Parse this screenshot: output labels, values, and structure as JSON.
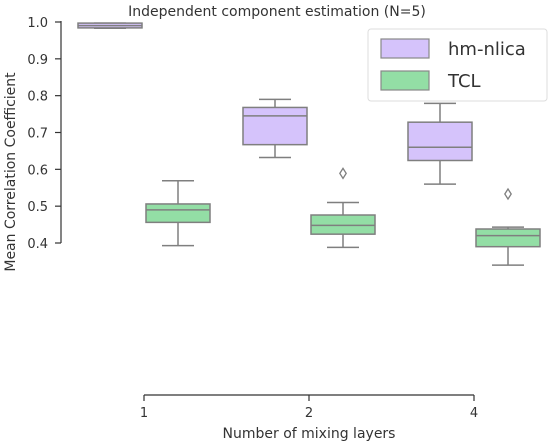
{
  "chart_data": {
    "type": "box",
    "title": "Independent component estimation (N=5)",
    "xlabel": "Number of mixing layers",
    "ylabel": "Mean Correlation Coefficient",
    "categories": [
      "1",
      "2",
      "4"
    ],
    "ylim": [
      0.0,
      1.0
    ],
    "yticks": [
      0.4,
      0.5,
      0.6,
      0.7,
      0.8,
      0.9,
      1.0
    ],
    "ytick_labels": [
      "0.4",
      "0.5",
      "0.6",
      "0.7",
      "0.8",
      "0.9",
      "1.0"
    ],
    "legend_position": "top-right",
    "grid": false,
    "series": [
      {
        "name": "hm-nlica",
        "color": "#d5c3fb",
        "boxes": [
          {
            "min": 0.983,
            "q1": 0.984,
            "median": 0.99,
            "q3": 0.997,
            "max": 0.997,
            "outliers": []
          },
          {
            "min": 0.632,
            "q1": 0.667,
            "median": 0.745,
            "q3": 0.768,
            "max": 0.79,
            "outliers": []
          },
          {
            "min": 0.56,
            "q1": 0.624,
            "median": 0.66,
            "q3": 0.728,
            "max": 0.779,
            "outliers": []
          }
        ]
      },
      {
        "name": "TCL",
        "color": "#93dea5",
        "boxes": [
          {
            "min": 0.393,
            "q1": 0.456,
            "median": 0.49,
            "q3": 0.506,
            "max": 0.569,
            "outliers": []
          },
          {
            "min": 0.388,
            "q1": 0.424,
            "median": 0.448,
            "q3": 0.476,
            "max": 0.51,
            "outliers": [
              0.589
            ]
          },
          {
            "min": 0.34,
            "q1": 0.39,
            "median": 0.42,
            "q3": 0.438,
            "max": 0.443,
            "outliers": [
              0.533
            ]
          }
        ]
      }
    ]
  }
}
